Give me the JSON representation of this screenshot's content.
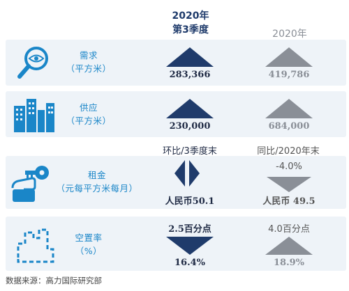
{
  "header": {
    "col1_line1": "2020年",
    "col1_line2": "第3季度",
    "col2": "2020年"
  },
  "rows": {
    "demand": {
      "label_line1": "需求",
      "label_line2": "（平方米）",
      "value_current": "283,366",
      "value_year": "419,786",
      "icon": "magnifier-eye-icon"
    },
    "supply": {
      "label_line1": "供应",
      "label_line2": "（平方米）",
      "value_current": "230,000",
      "value_year": "684,000",
      "icon": "buildings-icon"
    },
    "rent": {
      "label_line1": "租金",
      "label_line2": "（元每平方米每月）",
      "sub_current": "环比/3季度末",
      "sub_year": "同比/2020年末",
      "change_year": "-4.0%",
      "value_current": "人民币50.1",
      "value_year": "人民币 49.5",
      "icon": "hand-key-icon"
    },
    "vacancy": {
      "label_line1": "空置率",
      "label_line2": "（%）",
      "change_current": "2.5百分点",
      "change_year": "4.0百分点",
      "value_current": "16.4%",
      "value_year": "18.9%",
      "icon": "vacant-space-icon"
    }
  },
  "footer": {
    "source": "数据来源：高力国际研究部"
  },
  "colors": {
    "panel": "#eef3f8",
    "accent_blue": "#1a86c8",
    "dark_navy": "#1f3b6b",
    "gray": "#8a8f97"
  }
}
